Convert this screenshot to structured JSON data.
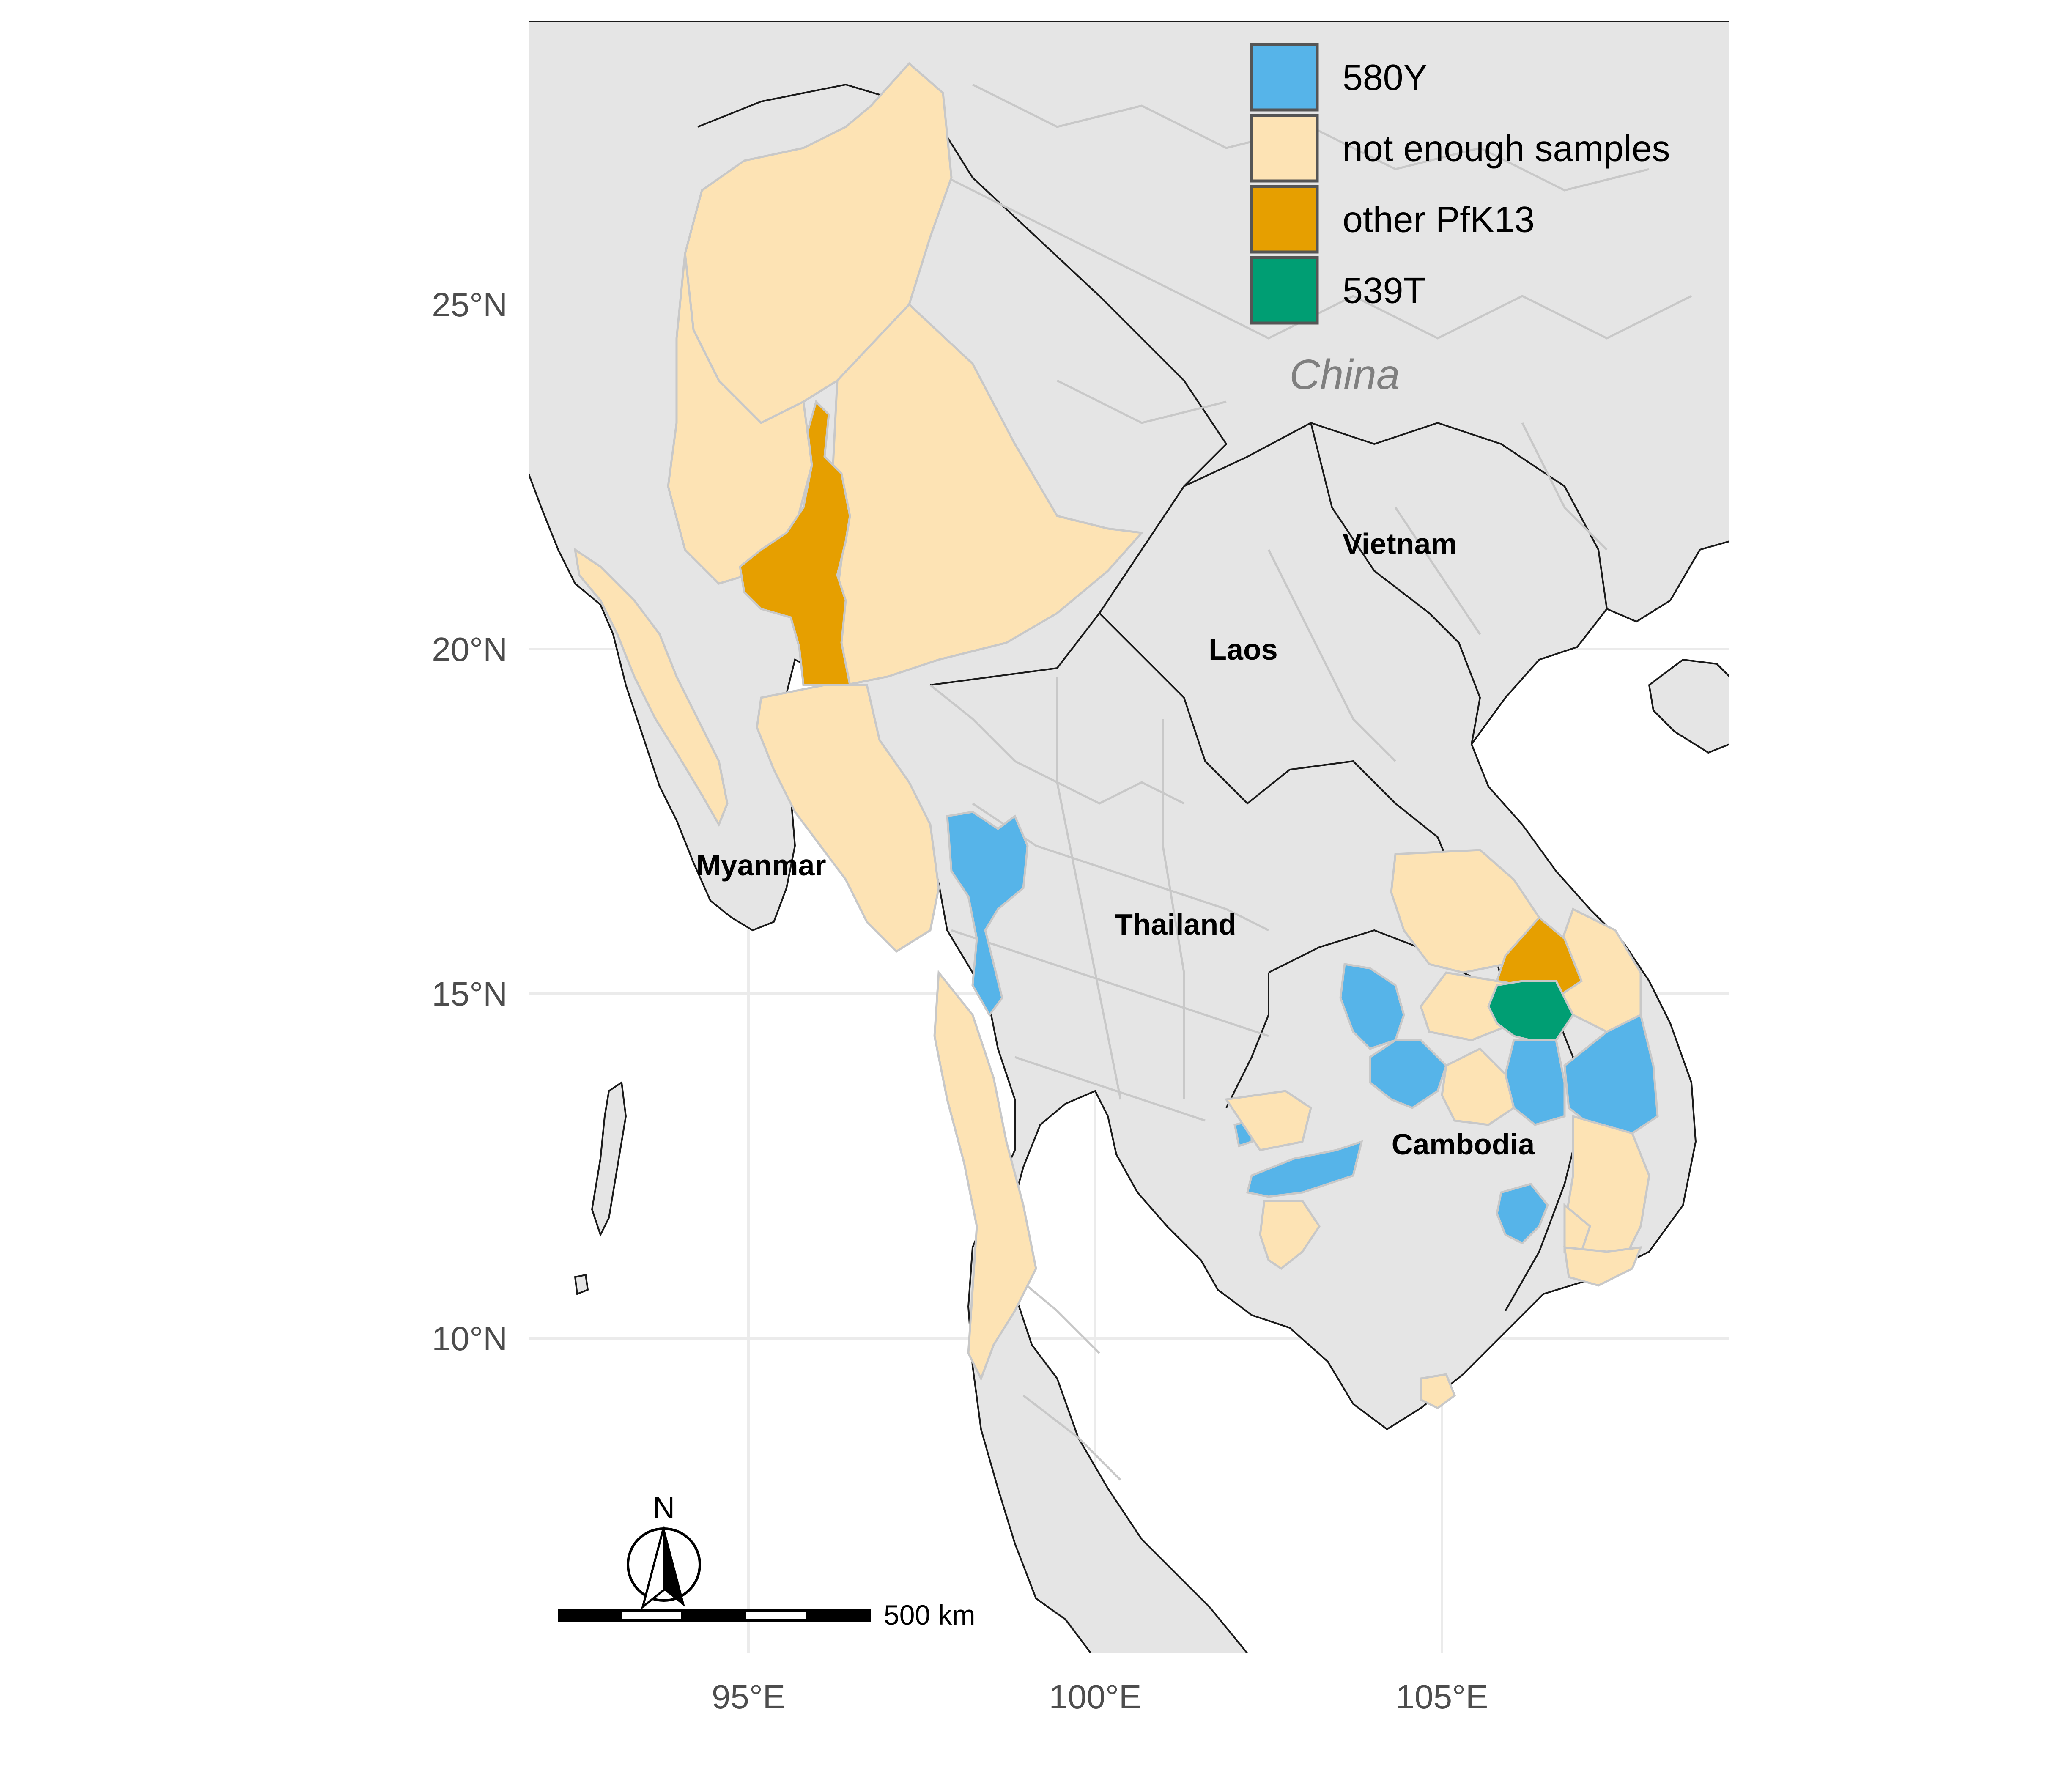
{
  "map": {
    "axes": {
      "x_ticks": [
        "95°E",
        "100°E",
        "105°E"
      ],
      "y_ticks": [
        "25°N",
        "20°N",
        "15°N",
        "10°N"
      ]
    },
    "labels": {
      "china": "China",
      "vietnam": "Vietnam",
      "laos": "Laos",
      "myanmar": "Myanmar",
      "thailand": "Thailand",
      "cambodia": "Cambodia"
    },
    "legend": {
      "position": "top-right",
      "items": [
        {
          "label": "580Y",
          "color": "#56B4E9"
        },
        {
          "label": "not enough samples",
          "color": "#FDE3B4"
        },
        {
          "label": "other PfK13",
          "color": "#E69F00"
        },
        {
          "label": "539T",
          "color": "#009E73"
        }
      ]
    },
    "scale_bar": {
      "label": "500 km"
    },
    "north_arrow": {
      "label": "N"
    },
    "colors": {
      "land": "#e5e5e5",
      "sea": "#ffffff",
      "grid": "#f2f2f2",
      "province_border": "#c8c8c8",
      "country_border": "#1a1a1a"
    }
  }
}
